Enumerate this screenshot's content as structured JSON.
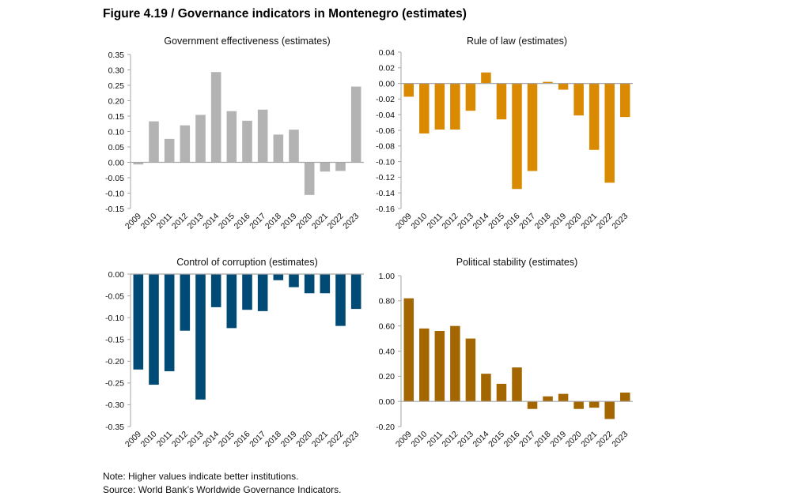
{
  "figure": {
    "title": "Figure 4.19 / Governance indicators in Montenegro (estimates)",
    "note": "Note: Higher values indicate better institutions.",
    "source": "Source: World Bank’s Worldwide Governance Indicators."
  },
  "chart_data": [
    {
      "id": "gov-effectiveness",
      "type": "bar",
      "title": "Government effectiveness (estimates)",
      "xlabel": "",
      "ylabel": "",
      "color": "#b3b3b3",
      "categories": [
        "2009",
        "2010",
        "2011",
        "2012",
        "2013",
        "2014",
        "2015",
        "2016",
        "2017",
        "2018",
        "2019",
        "2020",
        "2021",
        "2022",
        "2023"
      ],
      "values": [
        -0.007,
        0.133,
        0.076,
        0.12,
        0.154,
        0.293,
        0.166,
        0.135,
        0.171,
        0.09,
        0.106,
        -0.106,
        -0.03,
        -0.028,
        0.246
      ],
      "ylim": [
        -0.15,
        0.35
      ],
      "yticks": [
        0.35,
        0.3,
        0.25,
        0.2,
        0.15,
        0.1,
        0.05,
        0.0,
        -0.05,
        -0.1,
        -0.15
      ],
      "ytick_labels": [
        "0.35",
        "0.30",
        "0.25",
        "0.20",
        "0.15",
        "0.10",
        "0.05",
        "0.00",
        "-0.05",
        "-0.10",
        "-0.15"
      ],
      "grid": false,
      "legend": "none"
    },
    {
      "id": "rule-of-law",
      "type": "bar",
      "title": "Rule of law (estimates)",
      "xlabel": "",
      "ylabel": "",
      "color": "#d98a00",
      "categories": [
        "2009",
        "2010",
        "2011",
        "2012",
        "2013",
        "2014",
        "2015",
        "2016",
        "2017",
        "2018",
        "2019",
        "2020",
        "2021",
        "2022",
        "2023"
      ],
      "values": [
        -0.017,
        -0.064,
        -0.059,
        -0.059,
        -0.035,
        0.014,
        -0.046,
        -0.135,
        -0.112,
        0.002,
        -0.008,
        -0.041,
        -0.085,
        -0.127,
        -0.043
      ],
      "ylim": [
        -0.16,
        0.04
      ],
      "yticks": [
        0.04,
        0.02,
        0.0,
        -0.02,
        -0.04,
        -0.06,
        -0.08,
        -0.1,
        -0.12,
        -0.14,
        -0.16
      ],
      "ytick_labels": [
        "0.04",
        "0.02",
        "0.00",
        "-0.02",
        "-0.04",
        "-0.06",
        "-0.08",
        "-0.10",
        "-0.12",
        "-0.14",
        "-0.16"
      ],
      "grid": false,
      "legend": "none"
    },
    {
      "id": "control-of-corruption",
      "type": "bar",
      "title": "Control of corruption (estimates)",
      "xlabel": "",
      "ylabel": "",
      "color": "#004a76",
      "categories": [
        "2009",
        "2010",
        "2011",
        "2012",
        "2013",
        "2014",
        "2015",
        "2016",
        "2017",
        "2018",
        "2019",
        "2020",
        "2021",
        "2022",
        "2023"
      ],
      "values": [
        -0.219,
        -0.254,
        -0.223,
        -0.13,
        -0.288,
        -0.076,
        -0.124,
        -0.082,
        -0.085,
        -0.014,
        -0.03,
        -0.044,
        -0.044,
        -0.119,
        -0.08
      ],
      "ylim": [
        -0.35,
        0.0
      ],
      "yticks": [
        0.0,
        -0.05,
        -0.1,
        -0.15,
        -0.2,
        -0.25,
        -0.3,
        -0.35
      ],
      "ytick_labels": [
        "0.00",
        "-0.05",
        "-0.10",
        "-0.15",
        "-0.20",
        "-0.25",
        "-0.30",
        "-0.35"
      ],
      "grid": false,
      "legend": "none"
    },
    {
      "id": "political-stability",
      "type": "bar",
      "title": "Political stability (estimates)",
      "xlabel": "",
      "ylabel": "",
      "color": "#a36600",
      "categories": [
        "2009",
        "2010",
        "2011",
        "2012",
        "2013",
        "2014",
        "2015",
        "2016",
        "2017",
        "2018",
        "2019",
        "2020",
        "2021",
        "2022",
        "2023"
      ],
      "values": [
        0.82,
        0.58,
        0.56,
        0.6,
        0.5,
        0.22,
        0.14,
        0.27,
        -0.06,
        0.04,
        0.06,
        -0.06,
        -0.05,
        -0.14,
        0.07
      ],
      "ylim": [
        -0.2,
        1.0
      ],
      "yticks": [
        1.0,
        0.8,
        0.6,
        0.4,
        0.2,
        0.0,
        -0.2
      ],
      "ytick_labels": [
        "1.00",
        "0.80",
        "0.60",
        "0.40",
        "0.20",
        "0.00",
        "-0.20"
      ],
      "grid": false,
      "legend": "none"
    }
  ]
}
